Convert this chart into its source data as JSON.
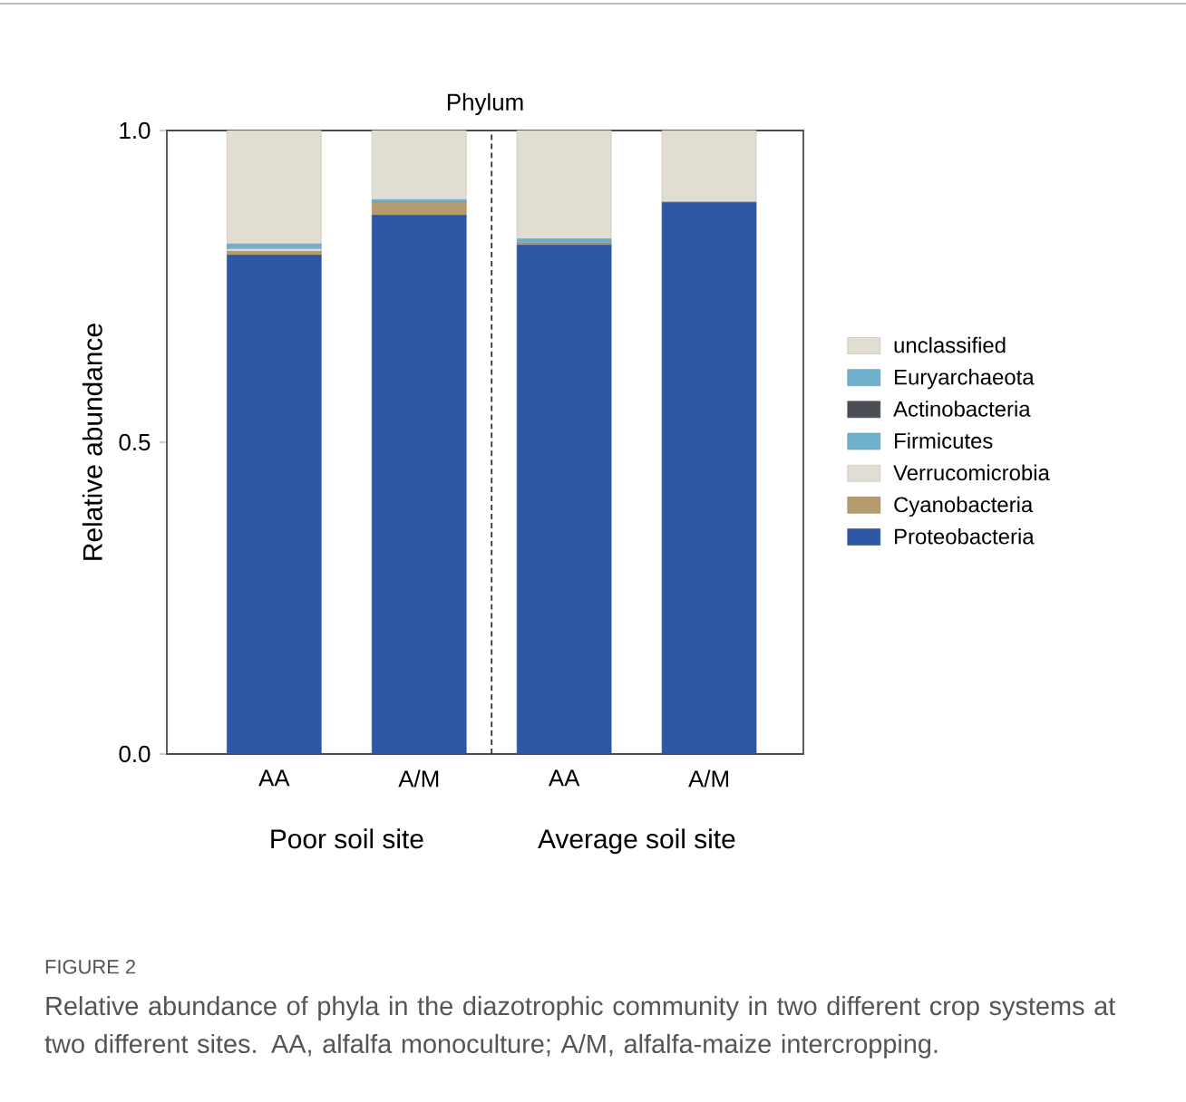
{
  "chart_data": {
    "type": "bar",
    "title": "Phylum",
    "ylabel": "Relative abundance",
    "categories": [
      "AA",
      "A/M",
      "AA",
      "A/M"
    ],
    "stacked": true,
    "series": [
      {
        "name": "Proteobacteria",
        "color": "#2e58a6",
        "values": [
          0.8,
          0.864,
          0.816,
          0.885
        ]
      },
      {
        "name": "Cyanobacteria",
        "color": "#b59b6e",
        "values": [
          0.006,
          0.021,
          0.003,
          0
        ]
      },
      {
        "name": "Verrucomicrobia",
        "color": "#e1ddd3",
        "values": [
          0.004,
          0,
          0,
          0
        ]
      },
      {
        "name": "Firmicutes",
        "color": "#6fb0cc",
        "values": [
          0.008,
          0.004,
          0.007,
          0
        ]
      },
      {
        "name": "Actinobacteria",
        "color": "#4b4e54",
        "values": [
          0,
          0,
          0,
          0
        ]
      },
      {
        "name": "Euryarchaeota",
        "color": "#6fb0cc",
        "values": [
          0,
          0,
          0,
          0
        ]
      },
      {
        "name": "unclassified",
        "color": "#e1ddd3",
        "values": [
          0.182,
          0.111,
          0.174,
          0.115
        ]
      }
    ],
    "ylim": [
      0,
      1
    ],
    "yticks": [
      {
        "value": 0,
        "label": "0.0"
      },
      {
        "value": 0.5,
        "label": "0.5"
      },
      {
        "value": 1,
        "label": "1.0"
      }
    ],
    "grid": false,
    "legend": "right",
    "annotations": [
      "Poor soil site",
      "Average soil site",
      "FIGURE 2",
      "Relative abundance of phyla in the diazotrophic community in two different crop systems at two different sites. AA, alfalfa monoculture; A/M, alfalfa-maize intercropping."
    ]
  }
}
